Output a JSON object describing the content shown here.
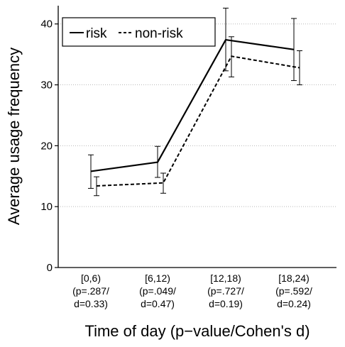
{
  "chart_data": {
    "type": "line",
    "title": "",
    "xlabel": "Time of day (p−value/Cohen's d)",
    "ylabel": "Average usage frequency",
    "ylim": [
      0,
      43
    ],
    "yticks": [
      0,
      10,
      20,
      30,
      40
    ],
    "grid": "horizontal dotted at y ticks",
    "legend_position": "top-left",
    "categories": [
      {
        "label": [
          "[0,6)",
          "(p=.287/",
          "d=0.33)"
        ]
      },
      {
        "label": [
          "[6,12)",
          "(p=.049/",
          "d=0.47)"
        ]
      },
      {
        "label": [
          "[12,18)",
          "(p=.727/",
          "d=0.19)"
        ]
      },
      {
        "label": [
          "[18,24)",
          "(p=.592/",
          "d=0.24)"
        ]
      }
    ],
    "series": [
      {
        "name": "risk",
        "style": "solid",
        "values": [
          15.8,
          17.3,
          37.4,
          35.8
        ],
        "err_low": [
          13.0,
          14.8,
          32.3,
          30.7
        ],
        "err_high": [
          18.5,
          19.9,
          42.6,
          40.9
        ]
      },
      {
        "name": "non-risk",
        "style": "dashed",
        "values": [
          13.4,
          13.9,
          34.7,
          32.8
        ],
        "err_low": [
          11.8,
          12.2,
          31.3,
          30.0
        ],
        "err_high": [
          14.9,
          15.5,
          37.9,
          35.6
        ]
      }
    ]
  }
}
